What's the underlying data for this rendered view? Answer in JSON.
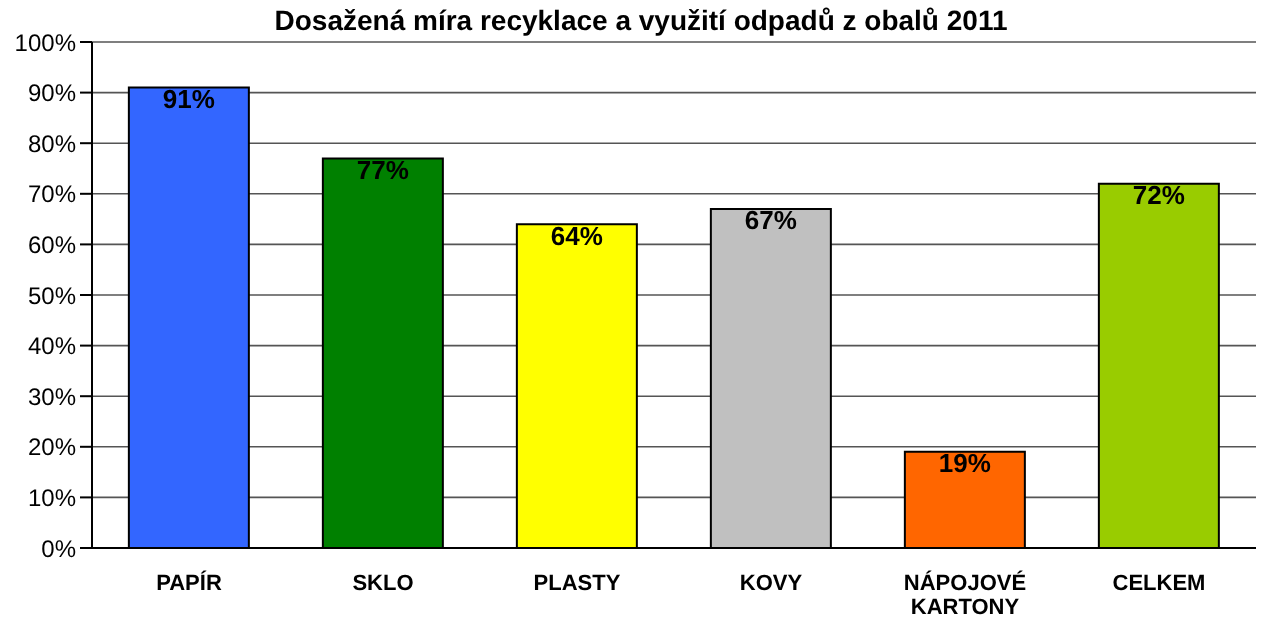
{
  "chart_data": {
    "type": "bar",
    "title": "Dosažená míra recyklace a využití odpadů z obalů 2011",
    "categories": [
      "PAPÍR",
      "SKLO",
      "PLASTY",
      "KOVY",
      "NÁPOJOVÉ KARTONY",
      "CELKEM"
    ],
    "values": [
      91,
      77,
      64,
      67,
      19,
      72
    ],
    "colors": [
      "#3366ff",
      "#008000",
      "#ffff00",
      "#c0c0c0",
      "#ff6600",
      "#99cc00"
    ],
    "value_labels": [
      "91%",
      "77%",
      "64%",
      "67%",
      "19%",
      "72%"
    ],
    "ylim": [
      0,
      100
    ],
    "yticks": [
      {
        "value": 0,
        "label": "0%"
      },
      {
        "value": 10,
        "label": "10%"
      },
      {
        "value": 20,
        "label": "20%"
      },
      {
        "value": 30,
        "label": "30%"
      },
      {
        "value": 40,
        "label": "40%"
      },
      {
        "value": 50,
        "label": "50%"
      },
      {
        "value": 60,
        "label": "60%"
      },
      {
        "value": 70,
        "label": "70%"
      },
      {
        "value": 80,
        "label": "80%"
      },
      {
        "value": 90,
        "label": "90%"
      },
      {
        "value": 100,
        "label": "100%"
      }
    ],
    "grid": "y"
  }
}
